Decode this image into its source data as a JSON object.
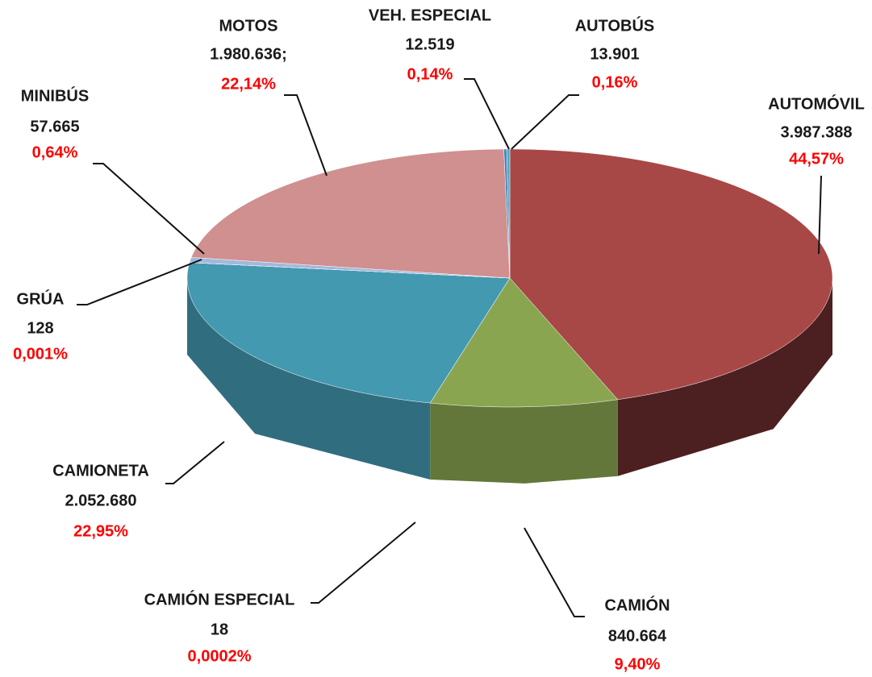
{
  "chart_data": {
    "type": "pie3d",
    "categories": [
      "AUTOMÓVIL",
      "CAMIÓN",
      "CAMIÓN ESPECIAL",
      "CAMIONETA",
      "GRÚA",
      "MINIBÚS",
      "MOTOS",
      "VEH. ESPECIAL",
      "AUTOBÚS"
    ],
    "values": [
      3987388,
      840664,
      18,
      2052680,
      128,
      57665,
      1980636,
      12519,
      13901
    ],
    "value_labels": [
      "3.987.388",
      "840.664",
      "18",
      "2.052.680",
      "128",
      "57.665",
      "1.980.636;",
      "12.519",
      "13.901"
    ],
    "percents": [
      44.57,
      9.4,
      0.0002,
      22.95,
      0.001,
      0.64,
      22.14,
      0.14,
      0.16
    ],
    "percent_labels": [
      "44,57%",
      "9,40%",
      "0,0002%",
      "22,95%",
      "0,001%",
      "0,64%",
      "22,14%",
      "0,14%",
      "0,16%"
    ],
    "colors": [
      "#a84846",
      "#8aa550",
      "#6b8a3a",
      "#4399b0",
      "#9fb6d8",
      "#a3b8dc",
      "#cf908f",
      "#4f81bd",
      "#4bacc6"
    ]
  }
}
